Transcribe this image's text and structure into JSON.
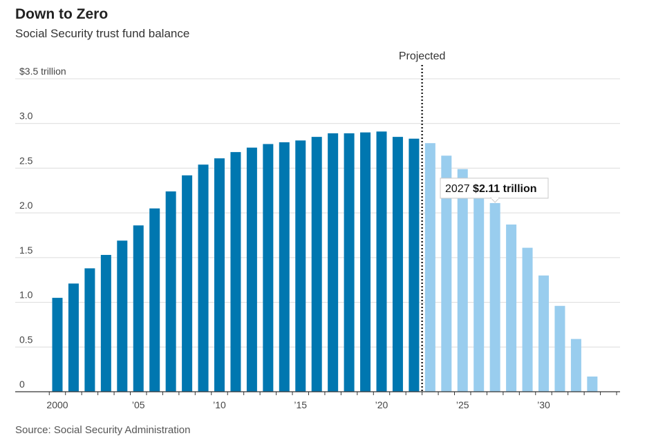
{
  "title": "Down to Zero",
  "subtitle": "Social Security trust fund balance",
  "source": "Source: Social Security Administration",
  "projected_label": "Projected",
  "colors": {
    "historical": "#0077b0",
    "projected": "#99cdee",
    "grid": "#dcdcdc",
    "axis": "#333333"
  },
  "annotation": {
    "year": 2027,
    "year_text": "2027",
    "value_text": "$2.11 trillion"
  },
  "chart_data": {
    "type": "bar",
    "title": "Down to Zero",
    "subtitle": "Social Security trust fund balance",
    "ylim": [
      0,
      3.5
    ],
    "y_ticks": [
      0,
      0.5,
      1.0,
      1.5,
      2.0,
      2.5,
      3.0,
      3.5
    ],
    "y_tick_labels": [
      "0",
      "0.5",
      "1.0",
      "1.5",
      "2.0",
      "2.5",
      "3.0",
      "$3.5 trillion"
    ],
    "x_ticks": [
      2000,
      2005,
      2010,
      2015,
      2020,
      2025,
      2030
    ],
    "x_tick_labels": [
      "2000",
      "’05",
      "’10",
      "’15",
      "’20",
      "’25",
      "’30"
    ],
    "projection_start_year": 2023,
    "grid": true,
    "series": [
      {
        "name": "",
        "years": [
          2000,
          2001,
          2002,
          2003,
          2004,
          2005,
          2006,
          2007,
          2008,
          2009,
          2010,
          2011,
          2012,
          2013,
          2014,
          2015,
          2016,
          2017,
          2018,
          2019,
          2020,
          2021,
          2022
        ],
        "values": [
          1.05,
          1.21,
          1.38,
          1.53,
          1.69,
          1.86,
          2.05,
          2.24,
          2.42,
          2.54,
          2.61,
          2.68,
          2.73,
          2.77,
          2.79,
          2.81,
          2.85,
          2.89,
          2.89,
          2.9,
          2.91,
          2.85,
          2.83
        ]
      },
      {
        "name": "Projected",
        "years": [
          2023,
          2024,
          2025,
          2026,
          2027,
          2028,
          2029,
          2030,
          2031,
          2032,
          2033
        ],
        "values": [
          2.78,
          2.64,
          2.49,
          2.31,
          2.11,
          1.87,
          1.61,
          1.3,
          0.96,
          0.59,
          0.17
        ]
      }
    ]
  }
}
